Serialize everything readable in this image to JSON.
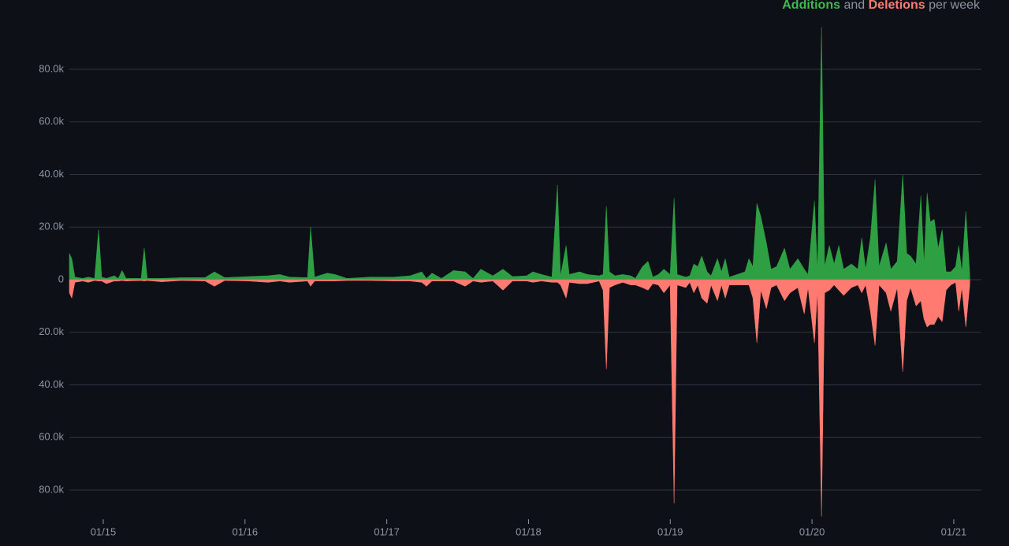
{
  "chart_data": {
    "type": "area",
    "series": [
      {
        "name": "Additions",
        "color": "#2ea043",
        "label_color": "#3fb950",
        "values": [
          10000,
          8000,
          1000,
          500,
          1000,
          500,
          19000,
          1000,
          500,
          1500,
          500,
          3500,
          500,
          500,
          12000,
          500,
          500,
          800,
          800,
          3000,
          800,
          1200,
          1500,
          2000,
          1000,
          800,
          20000,
          1000,
          2500,
          2000,
          500,
          1000,
          1000,
          1500,
          3000,
          500,
          2500,
          500,
          3500,
          3000,
          500,
          4000,
          1500,
          4000,
          1200,
          1500,
          3000,
          2000,
          1000,
          36000,
          1500,
          13000,
          2000,
          3000,
          2000,
          1500,
          2000,
          28000,
          3000,
          1500,
          2000,
          1500,
          500,
          5000,
          7000,
          1000,
          2000,
          4000,
          2000,
          31000,
          2000,
          1000,
          1500,
          6000,
          5000,
          9000,
          3000,
          1500,
          8000,
          3000,
          8000,
          1000,
          2000,
          3000,
          8000,
          5000,
          29000,
          24000,
          14000,
          4000,
          5000,
          12000,
          4000,
          8000,
          4000,
          2000,
          30000,
          3000,
          96000,
          5000,
          13000,
          6000,
          13000,
          4000,
          6000,
          4000,
          16000,
          4000,
          16000,
          38000,
          5000,
          14000,
          4000,
          7000,
          40000,
          10000,
          9000,
          6000,
          32000,
          6000,
          33000,
          22000,
          23000,
          12000,
          19000,
          3000,
          3000,
          5000,
          13000,
          3000,
          26000,
          2000
        ]
      },
      {
        "name": "Deletions",
        "color": "#ff7b72",
        "label_color": "#ff7b72",
        "values": [
          -5000,
          -7000,
          -1000,
          -500,
          -1000,
          -300,
          -500,
          -500,
          -1500,
          -500,
          -500,
          -300,
          -500,
          -300,
          -500,
          -300,
          -800,
          -300,
          -500,
          -2500,
          -300,
          -500,
          -1000,
          -500,
          -1000,
          -500,
          -2500,
          -500,
          -500,
          -500,
          -300,
          -300,
          -500,
          -500,
          -1000,
          -2500,
          -500,
          -500,
          -500,
          -2500,
          -500,
          -1000,
          -500,
          -4000,
          -500,
          -500,
          -1000,
          -500,
          -1000,
          -1000,
          -2000,
          -7000,
          -1000,
          -1500,
          -1500,
          -500,
          -4000,
          -34000,
          -3000,
          -2000,
          -1000,
          -2000,
          -2000,
          -3000,
          -4000,
          -1500,
          -2000,
          -5000,
          -2000,
          -85000,
          -2000,
          -3000,
          -1000,
          -5000,
          -2000,
          -7000,
          -9000,
          -2000,
          -8000,
          -2000,
          -7000,
          -2000,
          -2000,
          -2000,
          -2000,
          -7000,
          -24000,
          -4000,
          -11000,
          -3000,
          -2000,
          -8000,
          -5000,
          -3000,
          -13000,
          -3000,
          -24000,
          -4000,
          -90000,
          -5000,
          -4000,
          -2000,
          -4000,
          -6000,
          -3000,
          -2000,
          -5000,
          -2000,
          -12000,
          -25000,
          -2000,
          -5000,
          -12000,
          -3000,
          -35000,
          -8000,
          -3000,
          -10000,
          -8000,
          -15000,
          -18000,
          -17000,
          -17000,
          -14000,
          -16000,
          -4000,
          -2000,
          -1000,
          -12000,
          -3000,
          -18000,
          -2000
        ]
      }
    ],
    "x": [
      2014.761,
      2014.778,
      2014.8,
      2014.855,
      2014.894,
      2014.939,
      2014.967,
      2014.989,
      2015.022,
      2015.078,
      2015.106,
      2015.133,
      2015.161,
      2015.267,
      2015.289,
      2015.311,
      2015.412,
      2015.551,
      2015.718,
      2015.784,
      2015.857,
      2016.023,
      2016.162,
      2016.246,
      2016.313,
      2016.441,
      2016.463,
      2016.491,
      2016.58,
      2016.635,
      2016.719,
      2016.886,
      2017.052,
      2017.164,
      2017.247,
      2017.28,
      2017.319,
      2017.386,
      2017.47,
      2017.553,
      2017.609,
      2017.664,
      2017.748,
      2017.82,
      2017.887,
      2017.987,
      2018.031,
      2018.092,
      2018.165,
      2018.204,
      2018.226,
      2018.265,
      2018.287,
      2018.359,
      2018.415,
      2018.498,
      2018.526,
      2018.549,
      2018.571,
      2018.61,
      2018.665,
      2018.721,
      2018.754,
      2018.804,
      2018.843,
      2018.877,
      2018.916,
      2018.955,
      2018.999,
      2019.027,
      2019.049,
      2019.11,
      2019.138,
      2019.166,
      2019.194,
      2019.222,
      2019.26,
      2019.288,
      2019.333,
      2019.361,
      2019.388,
      2019.416,
      2019.472,
      2019.527,
      2019.555,
      2019.583,
      2019.611,
      2019.639,
      2019.678,
      2019.711,
      2019.75,
      2019.806,
      2019.844,
      2019.9,
      2019.945,
      2019.972,
      2020.017,
      2020.039,
      2020.067,
      2020.089,
      2020.122,
      2020.156,
      2020.189,
      2020.223,
      2020.278,
      2020.323,
      2020.351,
      2020.378,
      2020.412,
      2020.445,
      2020.473,
      2020.523,
      2020.556,
      2020.601,
      2020.64,
      2020.668,
      2020.695,
      2020.734,
      2020.768,
      2020.79,
      2020.812,
      2020.834,
      2020.862,
      2020.89,
      2020.918,
      2020.946,
      2020.979,
      2021.013,
      2021.035,
      2021.057,
      2021.085,
      2021.113
    ],
    "legend_joiner": "and",
    "legend_suffix": "per week",
    "xlim": [
      2014.761,
      2021.195
    ],
    "xticks": [
      {
        "value": 2015,
        "label": "01/15"
      },
      {
        "value": 2016,
        "label": "01/16"
      },
      {
        "value": 2017,
        "label": "01/17"
      },
      {
        "value": 2018,
        "label": "01/18"
      },
      {
        "value": 2019,
        "label": "01/19"
      },
      {
        "value": 2020,
        "label": "01/20"
      },
      {
        "value": 2021,
        "label": "01/21"
      }
    ],
    "ylim": [
      -90000,
      100000
    ],
    "yticks": [
      {
        "value": 80000,
        "label": "80.0k"
      },
      {
        "value": 60000,
        "label": "60.0k"
      },
      {
        "value": 40000,
        "label": "40.0k"
      },
      {
        "value": 20000,
        "label": "20.0k"
      },
      0,
      {
        "value": -20000,
        "label": "20.0k"
      },
      {
        "value": -40000,
        "label": "40.0k"
      },
      {
        "value": -60000,
        "label": "60.0k"
      },
      {
        "value": -80000,
        "label": "80.0k"
      }
    ],
    "grid": true,
    "legend_position": "top-right"
  }
}
